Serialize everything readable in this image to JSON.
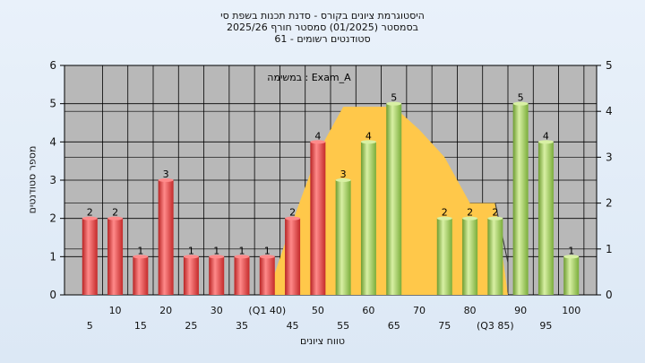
{
  "chart_data": {
    "type": "bar",
    "title_lines": [
      "היסטוגרמת ציונים בקורס - סדנת תכנות בשפת סי",
      "בסמסטר  (01/2025)  סמסטר חורף 2025/26",
      "סטודנטים רשומים - 61"
    ],
    "ylabel": "מספר סטודנטים",
    "xlabel": "טווח ציונים",
    "annotation": "במשימה : Exam_A",
    "ylim": [
      0,
      6
    ],
    "y2lim": [
      0,
      5
    ],
    "yticks": [
      0,
      1,
      2,
      3,
      4,
      5,
      6
    ],
    "y2ticks": [
      0,
      1,
      2,
      3,
      4,
      5
    ],
    "bars": [
      {
        "x": 5,
        "value": 2,
        "color": "red"
      },
      {
        "x": 10,
        "value": 2,
        "color": "red"
      },
      {
        "x": 15,
        "value": 1,
        "color": "red"
      },
      {
        "x": 20,
        "value": 3,
        "color": "red"
      },
      {
        "x": 25,
        "value": 1,
        "color": "red"
      },
      {
        "x": 30,
        "value": 1,
        "color": "red"
      },
      {
        "x": 35,
        "value": 1,
        "color": "red"
      },
      {
        "x": 40,
        "value": 1,
        "color": "red"
      },
      {
        "x": 45,
        "value": 2,
        "color": "red"
      },
      {
        "x": 50,
        "value": 4,
        "color": "red"
      },
      {
        "x": 55,
        "value": 3,
        "color": "green"
      },
      {
        "x": 60,
        "value": 4,
        "color": "green"
      },
      {
        "x": 65,
        "value": 5,
        "color": "green"
      },
      {
        "x": 70,
        "value": 0,
        "color": "green"
      },
      {
        "x": 75,
        "value": 2,
        "color": "green"
      },
      {
        "x": 80,
        "value": 2,
        "color": "green"
      },
      {
        "x": 85,
        "value": 2,
        "color": "green"
      },
      {
        "x": 90,
        "value": 5,
        "color": "green"
      },
      {
        "x": 95,
        "value": 4,
        "color": "green"
      },
      {
        "x": 100,
        "value": 1,
        "color": "green"
      }
    ],
    "xtick_labels": [
      {
        "x": 5,
        "label": "5"
      },
      {
        "x": 10,
        "label": "10"
      },
      {
        "x": 15,
        "label": "15"
      },
      {
        "x": 20,
        "label": "20"
      },
      {
        "x": 25,
        "label": "25"
      },
      {
        "x": 30,
        "label": "30"
      },
      {
        "x": 35,
        "label": "35"
      },
      {
        "x": 40,
        "label": "(Q1 40)"
      },
      {
        "x": 45,
        "label": "45"
      },
      {
        "x": 50,
        "label": "50"
      },
      {
        "x": 55,
        "label": "55"
      },
      {
        "x": 60,
        "label": "60"
      },
      {
        "x": 65,
        "label": "65"
      },
      {
        "x": 70,
        "label": "70"
      },
      {
        "x": 75,
        "label": "75"
      },
      {
        "x": 80,
        "label": "80"
      },
      {
        "x": 85,
        "label": "(Q3 85)"
      },
      {
        "x": 90,
        "label": "90"
      },
      {
        "x": 95,
        "label": "95"
      },
      {
        "x": 100,
        "label": "100"
      }
    ],
    "area": {
      "description_x": [
        40,
        45,
        50,
        55,
        60,
        65,
        70,
        75,
        80,
        85,
        87.5
      ],
      "values_y2": [
        0,
        1.6,
        3.1,
        4.1,
        4.1,
        4.1,
        3.6,
        3.0,
        2.0,
        2.0,
        0
      ],
      "color": "#ffc84a"
    },
    "trend_x": [
      85,
      87.5
    ],
    "trend_y2": [
      2.0,
      0.7
    ],
    "colors": {
      "red": "#d23a3a",
      "red_light": "#ff8a8a",
      "green": "#7fb33d",
      "green_light": "#d8f0a4",
      "plot_bg": "#b8b8b8",
      "grid": "#000000"
    }
  }
}
